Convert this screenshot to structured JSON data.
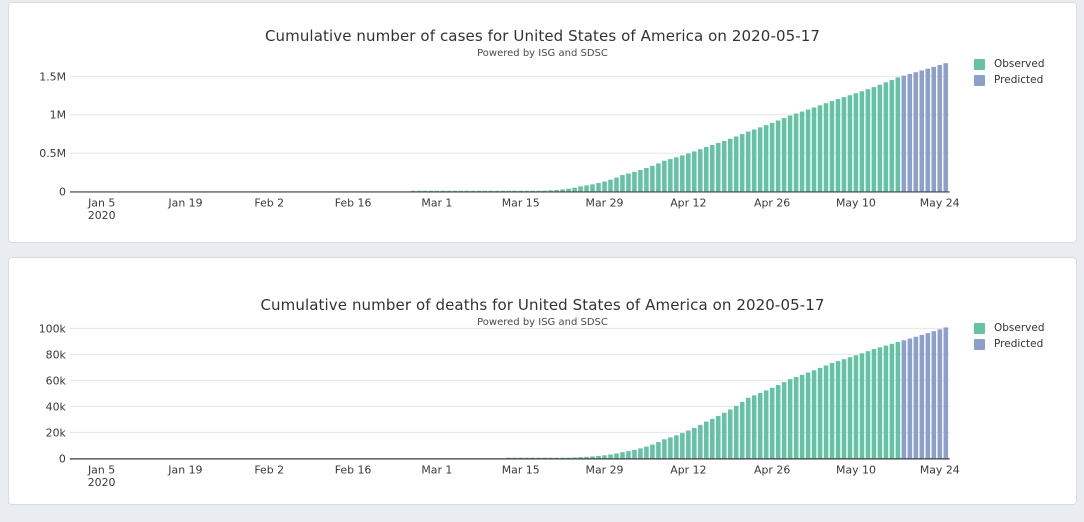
{
  "page": {
    "background_color": "#e9edf2",
    "card_color": "#ffffff"
  },
  "chart_data": [
    {
      "type": "bar",
      "title": "Cumulative number of cases for United States of America on 2020-05-17",
      "subtitle": "Powered by ISG and SDSC",
      "xlabel": "",
      "ylabel": "",
      "grid": true,
      "legend_position": "top-right",
      "x_day0_label": "Jan 5 2020",
      "ylim": [
        0,
        1500000
      ],
      "yticks": [
        {
          "v": 0,
          "label": "0"
        },
        {
          "v": 500000,
          "label": "0.5M"
        },
        {
          "v": 1000000,
          "label": "1M"
        },
        {
          "v": 1500000,
          "label": "1.5M"
        }
      ],
      "xticks": [
        {
          "day": 0,
          "label": "Jan 5",
          "sublabel": "2020"
        },
        {
          "day": 14,
          "label": "Jan 19"
        },
        {
          "day": 28,
          "label": "Feb 2"
        },
        {
          "day": 42,
          "label": "Feb 16"
        },
        {
          "day": 56,
          "label": "Mar 1"
        },
        {
          "day": 70,
          "label": "Mar 15"
        },
        {
          "day": 84,
          "label": "Mar 29"
        },
        {
          "day": 98,
          "label": "Apr 12"
        },
        {
          "day": 112,
          "label": "Apr 26"
        },
        {
          "day": 126,
          "label": "May 10"
        },
        {
          "day": 140,
          "label": "May 24"
        }
      ],
      "series": [
        {
          "name": "Observed",
          "color": "#66c2a5",
          "interpolation": "log-anchors",
          "points": [
            [
              17,
              1
            ],
            [
              24,
              5
            ],
            [
              31,
              11
            ],
            [
              38,
              13
            ],
            [
              45,
              15
            ],
            [
              52,
              59
            ],
            [
              59,
              149
            ],
            [
              66,
              1281
            ],
            [
              73,
              7786
            ],
            [
              80,
              65778
            ],
            [
              87,
              213372
            ],
            [
              94,
              400000
            ],
            [
              101,
              580000
            ],
            [
              108,
              780000
            ],
            [
              115,
              990000
            ],
            [
              122,
              1180000
            ],
            [
              129,
              1360000
            ],
            [
              133,
              1487000
            ]
          ]
        },
        {
          "name": "Predicted",
          "color": "#8da0cb",
          "interpolation": "daily",
          "points": [
            [
              134,
              1509000
            ],
            [
              135,
              1531500
            ],
            [
              136,
              1554200
            ],
            [
              137,
              1577200
            ],
            [
              138,
              1600500
            ],
            [
              139,
              1624100
            ],
            [
              140,
              1648000
            ],
            [
              141,
              1672200
            ]
          ]
        }
      ]
    },
    {
      "type": "bar",
      "title": "Cumulative number of deaths for United States of America on 2020-05-17",
      "subtitle": "Powered by ISG and SDSC",
      "xlabel": "",
      "ylabel": "",
      "grid": true,
      "legend_position": "top-right",
      "x_day0_label": "Jan 5 2020",
      "ylim": [
        0,
        100000
      ],
      "yticks": [
        {
          "v": 0,
          "label": "0"
        },
        {
          "v": 20000,
          "label": "20k"
        },
        {
          "v": 40000,
          "label": "40k"
        },
        {
          "v": 60000,
          "label": "60k"
        },
        {
          "v": 80000,
          "label": "80k"
        },
        {
          "v": 100000,
          "label": "100k"
        }
      ],
      "xticks": [
        {
          "day": 0,
          "label": "Jan 5",
          "sublabel": "2020"
        },
        {
          "day": 14,
          "label": "Jan 19"
        },
        {
          "day": 28,
          "label": "Feb 2"
        },
        {
          "day": 42,
          "label": "Feb 16"
        },
        {
          "day": 56,
          "label": "Mar 1"
        },
        {
          "day": 70,
          "label": "Mar 15"
        },
        {
          "day": 84,
          "label": "Mar 29"
        },
        {
          "day": 98,
          "label": "Apr 12"
        },
        {
          "day": 112,
          "label": "Apr 26"
        },
        {
          "day": 126,
          "label": "May 10"
        },
        {
          "day": 140,
          "label": "May 24"
        }
      ],
      "series": [
        {
          "name": "Observed",
          "color": "#66c2a5",
          "interpolation": "log-anchors",
          "points": [
            [
              17,
              0
            ],
            [
              45,
              0
            ],
            [
              52,
              1
            ],
            [
              59,
              11
            ],
            [
              66,
              36
            ],
            [
              73,
              118
            ],
            [
              80,
              942
            ],
            [
              87,
              4757
            ],
            [
              94,
              14695
            ],
            [
              101,
              28326
            ],
            [
              108,
              46622
            ],
            [
              115,
              60966
            ],
            [
              122,
              73431
            ],
            [
              129,
              84119
            ],
            [
              133,
              89562
            ]
          ]
        },
        {
          "name": "Predicted",
          "color": "#8da0cb",
          "interpolation": "daily",
          "points": [
            [
              134,
              90900
            ],
            [
              135,
              92250
            ],
            [
              136,
              93620
            ],
            [
              137,
              95010
            ],
            [
              138,
              96420
            ],
            [
              139,
              97850
            ],
            [
              140,
              99300
            ],
            [
              141,
              100770
            ]
          ]
        }
      ]
    }
  ]
}
